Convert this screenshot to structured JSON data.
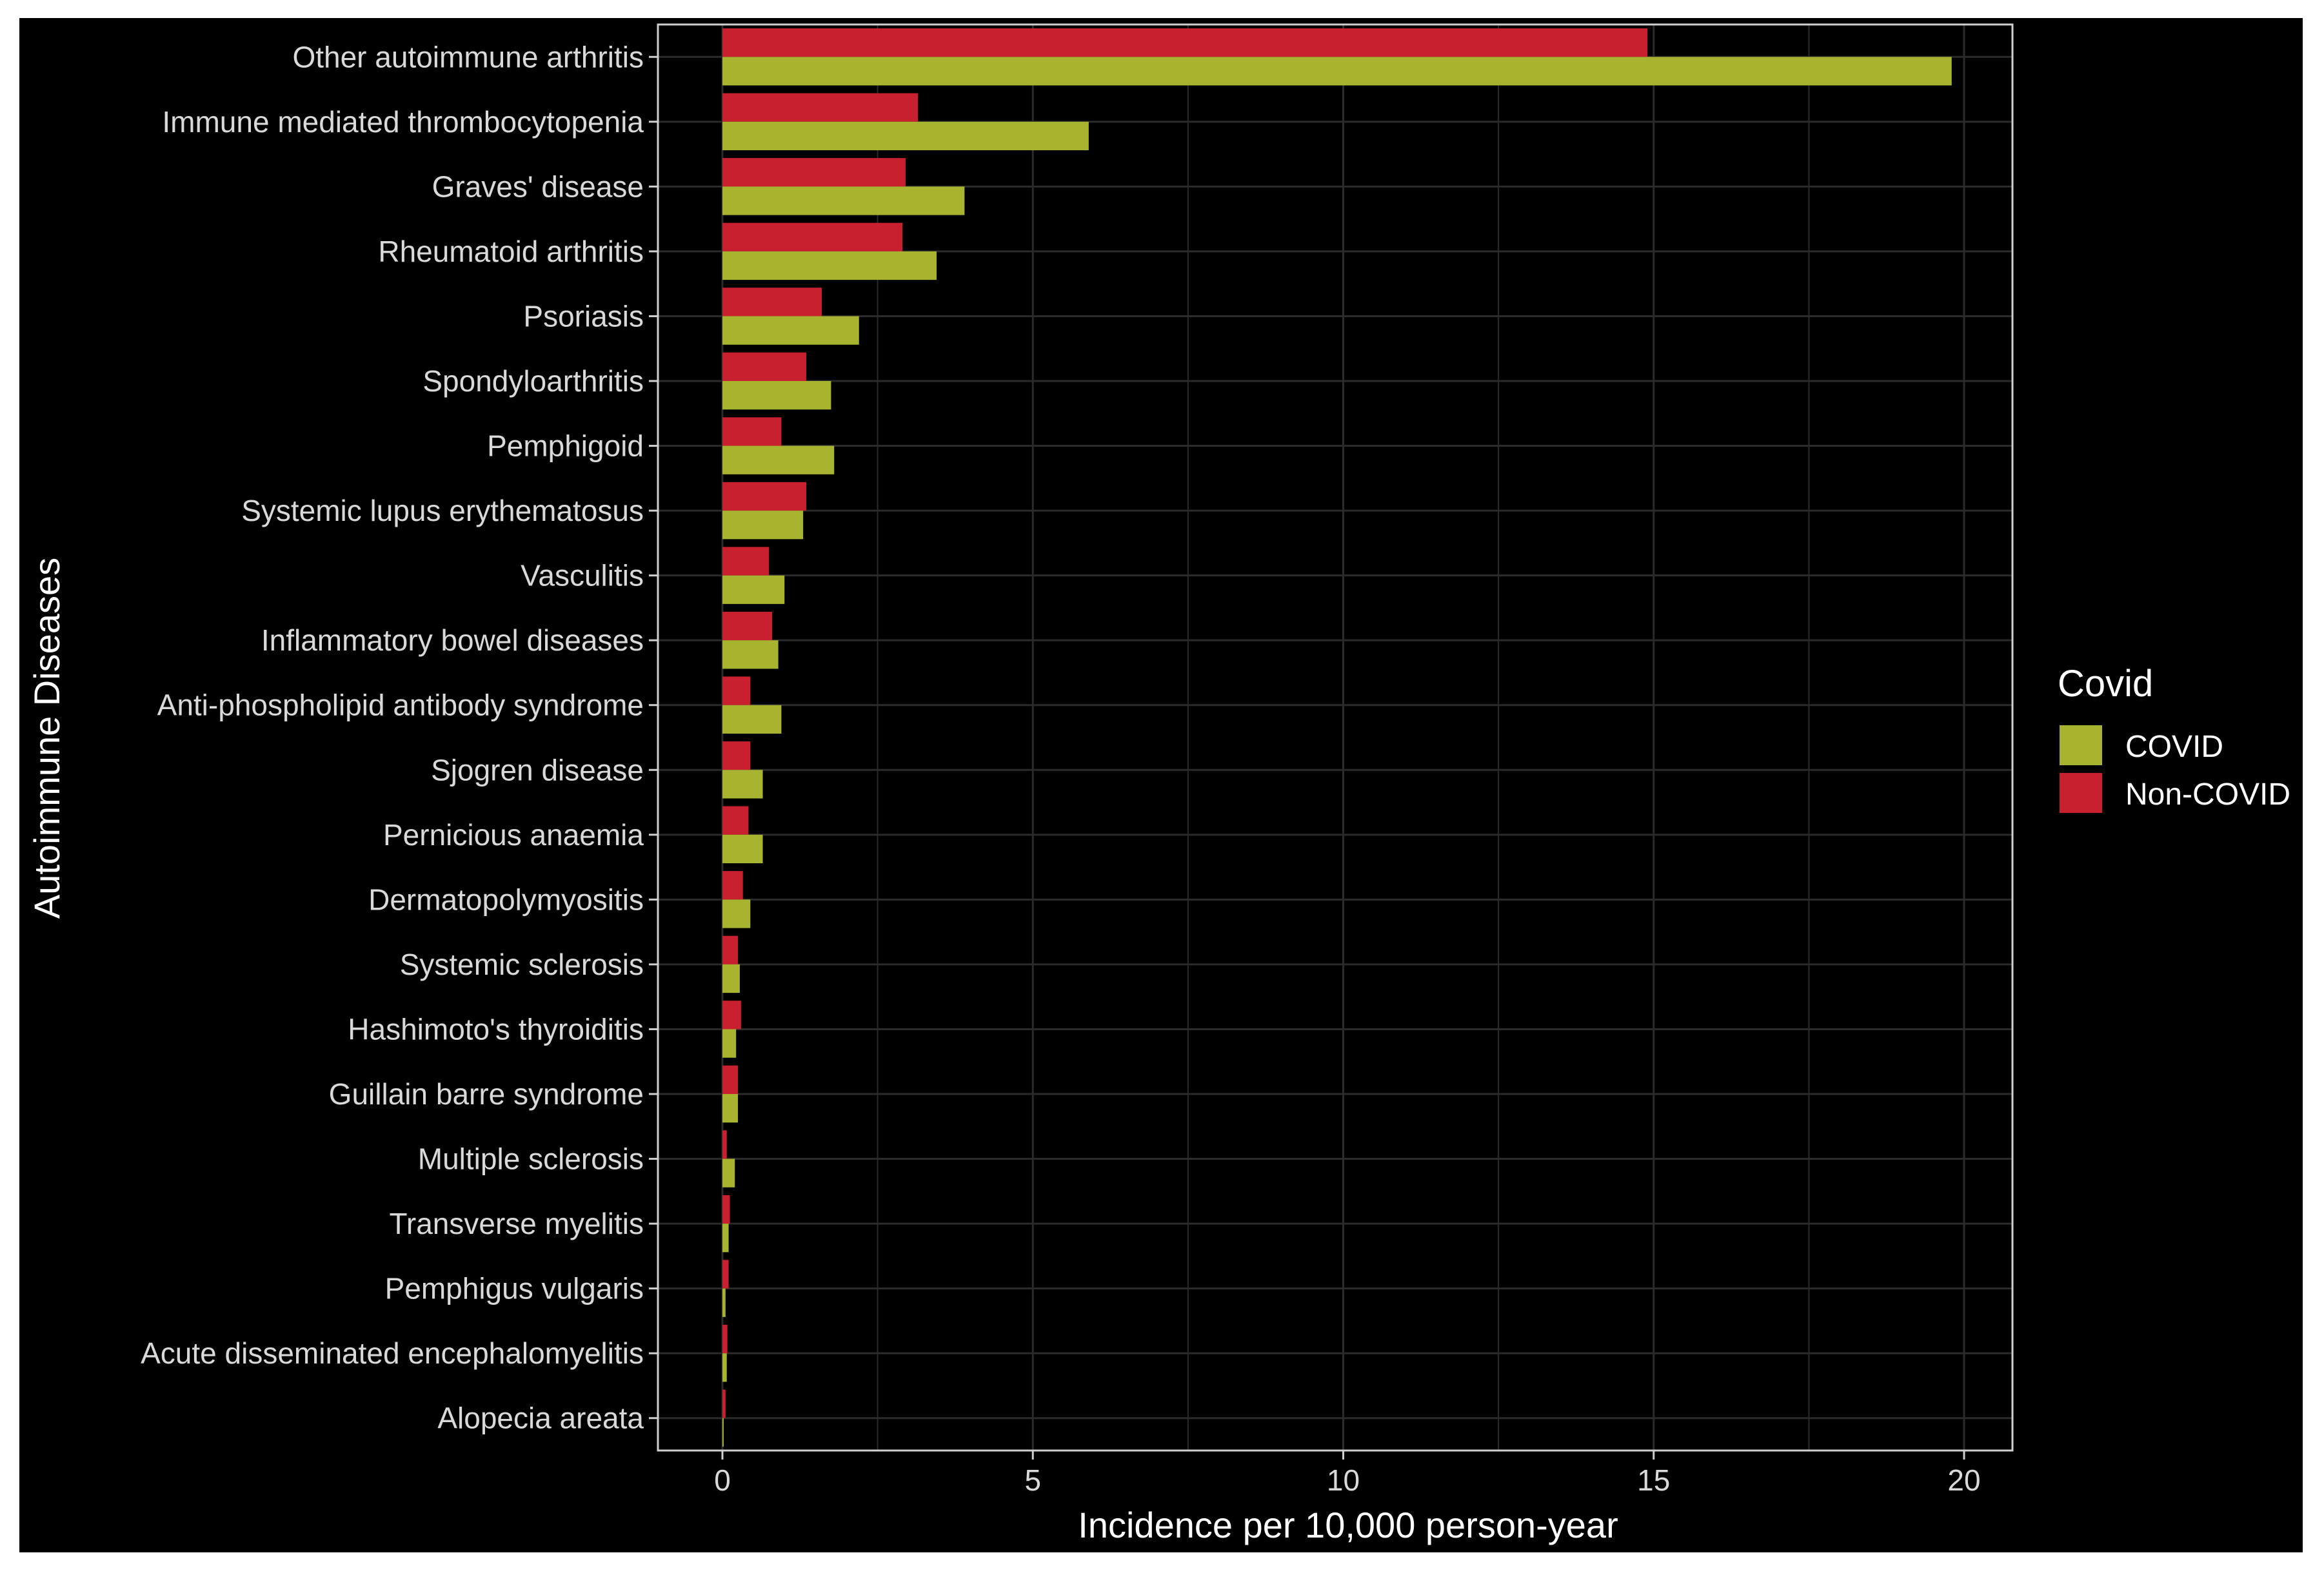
{
  "chart_data": {
    "type": "bar",
    "orientation": "horizontal",
    "xlabel": "Incidence per 10,000 person-year",
    "ylabel": "Autoimmune Diseases",
    "xlim": [
      0,
      20
    ],
    "xticks": [
      "0",
      "5",
      "10",
      "15",
      "20"
    ],
    "grid": true,
    "legend_position": "right",
    "legend_title": "Covid",
    "categories": [
      "Other autoimmune arthritis",
      "Immune mediated thrombocytopenia",
      "Graves' disease",
      "Rheumatoid arthritis",
      "Psoriasis",
      "Spondyloarthritis",
      "Pemphigoid",
      "Systemic lupus erythematosus",
      "Vasculitis",
      "Inflammatory bowel diseases",
      "Anti-phospholipid antibody syndrome",
      "Sjogren disease",
      "Pernicious anaemia",
      "Dermatopolymyositis",
      "Systemic sclerosis",
      "Hashimoto's thyroiditis",
      "Guillain barre syndrome",
      "Multiple sclerosis",
      "Transverse myelitis",
      "Pemphigus vulgaris",
      "Acute disseminated encephalomyelitis",
      "Alopecia areata"
    ],
    "series": [
      {
        "name": "COVID",
        "color": "#a8b330",
        "values": [
          19.8,
          5.9,
          3.9,
          3.45,
          2.2,
          1.75,
          1.8,
          1.3,
          1.0,
          0.9,
          0.95,
          0.65,
          0.65,
          0.45,
          0.28,
          0.22,
          0.25,
          0.2,
          0.1,
          0.05,
          0.07,
          0.02
        ]
      },
      {
        "name": "Non-COVID",
        "color": "#c8202f",
        "values": [
          14.9,
          3.15,
          2.95,
          2.9,
          1.6,
          1.35,
          0.95,
          1.35,
          0.75,
          0.8,
          0.45,
          0.45,
          0.42,
          0.33,
          0.25,
          0.3,
          0.25,
          0.07,
          0.12,
          0.1,
          0.08,
          0.05
        ]
      }
    ]
  },
  "colors": {
    "background": "#000000",
    "outer_border": "#ffffff",
    "panel_border": "#cfcfcf",
    "grid": "#2b2b2b",
    "text": "#d9d9d9",
    "title_text": "#ffffff"
  }
}
